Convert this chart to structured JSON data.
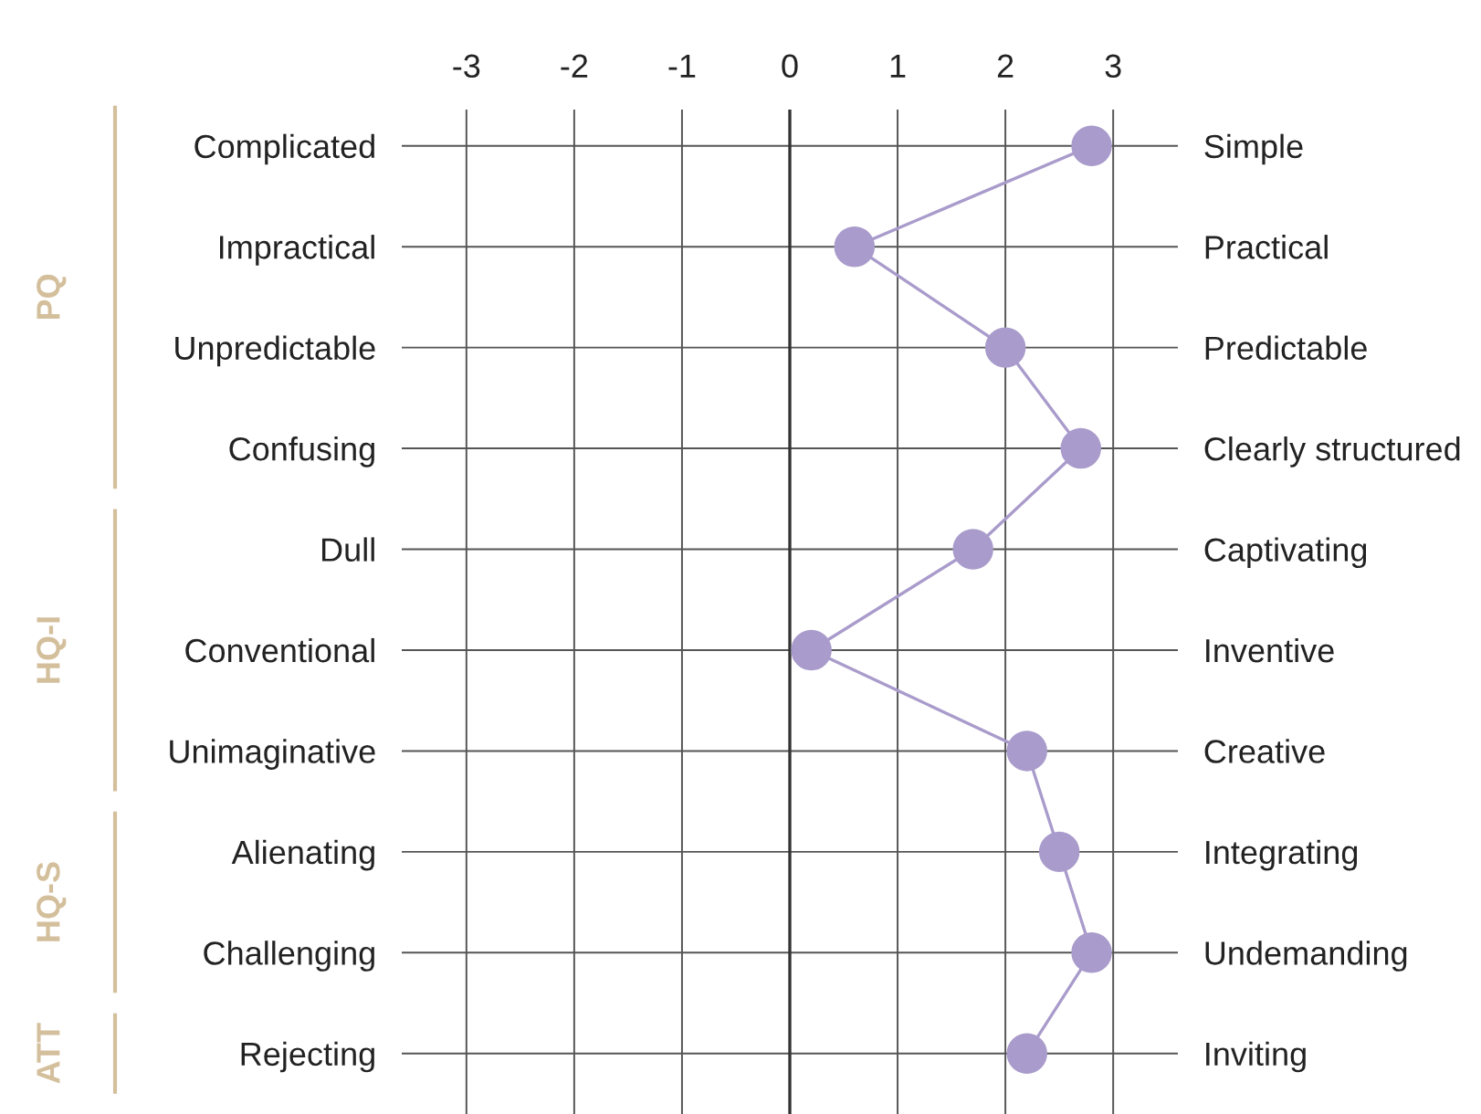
{
  "chart_data": {
    "type": "line",
    "orientation": "horizontal",
    "categories": [
      "Complicated",
      "Impractical",
      "Unpredictable",
      "Confusing",
      "Dull",
      "Conventional",
      "Unimaginative",
      "Alienating",
      "Challenging",
      "Rejecting"
    ],
    "y2_categories": [
      "Simple",
      "Practical",
      "Predictable",
      "Clearly structured",
      "Captivating",
      "Inventive",
      "Creative",
      "Integrating",
      "Undemanding",
      "Inviting"
    ],
    "series": [
      {
        "color": "#a99bcb",
        "values": [
          2.8,
          0.6,
          2.0,
          2.7,
          1.7,
          0.2,
          2.2,
          2.5,
          2.8,
          2.2
        ]
      }
    ],
    "xlim": [
      -3.6,
      3.6
    ],
    "xticks": [
      -3,
      -2,
      -1,
      0,
      1,
      2,
      3
    ],
    "grid": true,
    "marker": "circle",
    "line_style": "solid",
    "ref_lines": [
      {
        "axis": "x",
        "value": 0,
        "color": "#333333"
      }
    ],
    "annotations": [
      "PQ",
      "HQ-I",
      "HQ-S",
      "ATT"
    ]
  }
}
